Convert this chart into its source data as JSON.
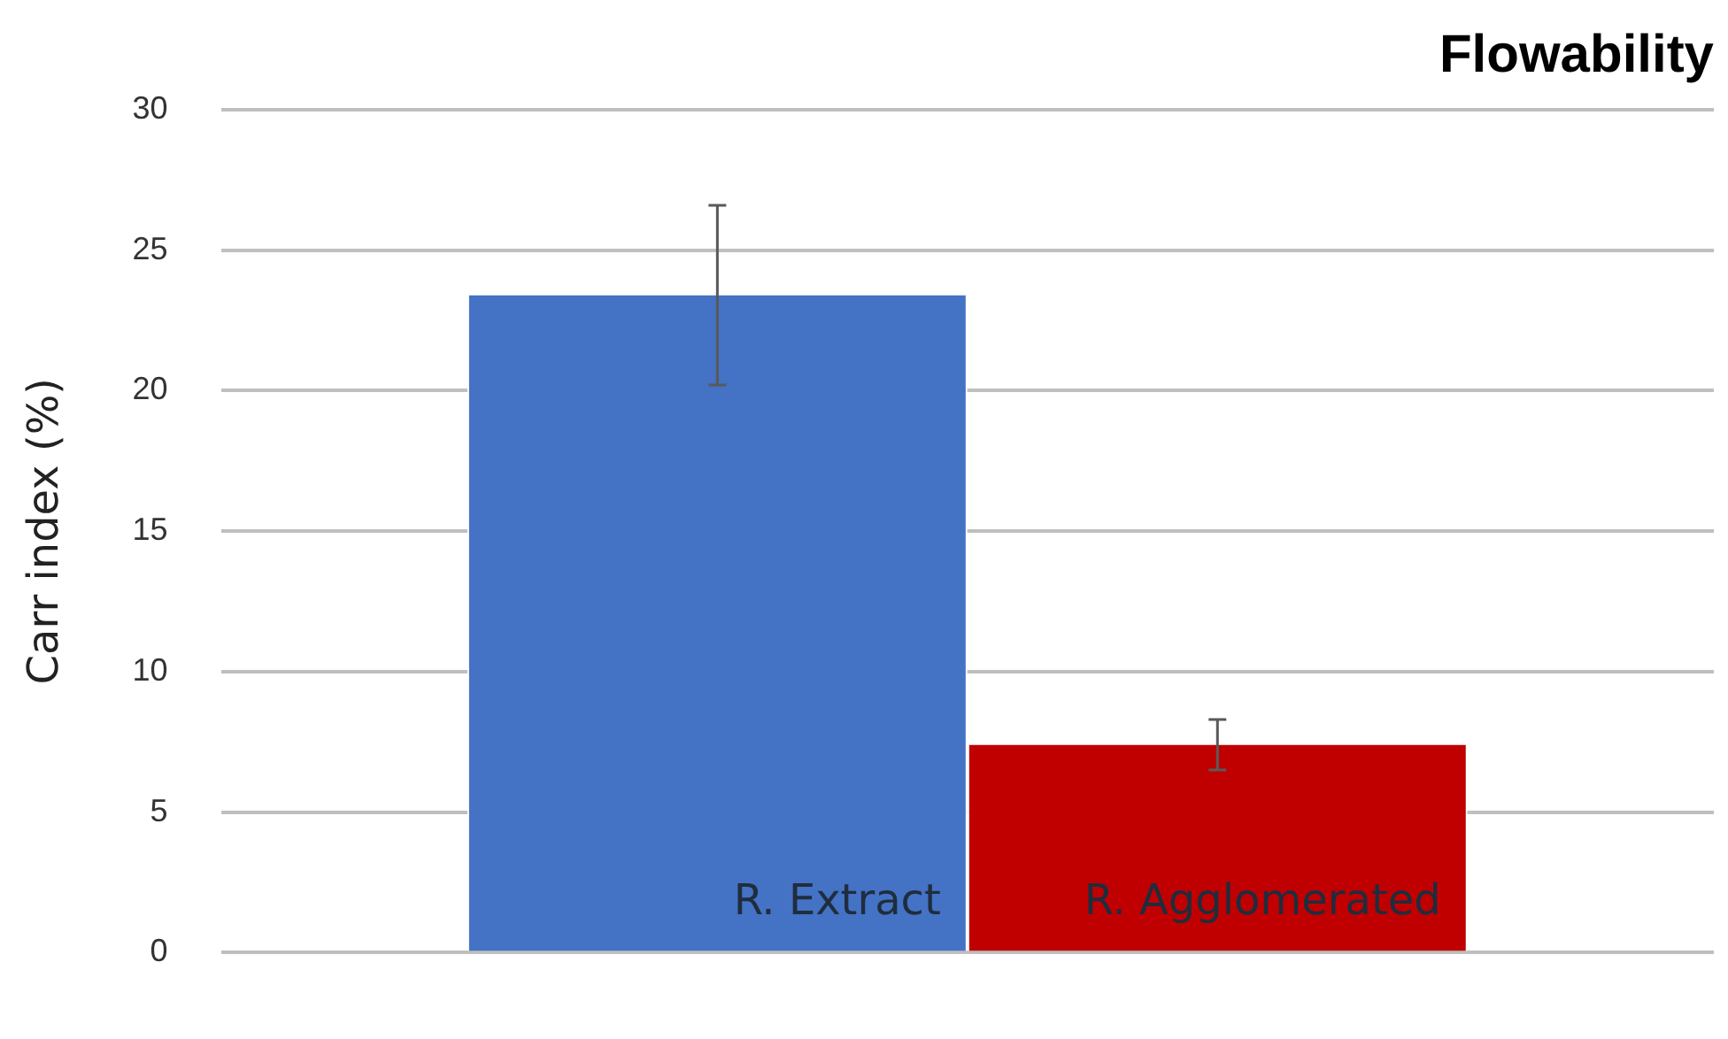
{
  "chart_data": {
    "type": "bar",
    "title": "Flowability",
    "ylabel": "Carr index (%)",
    "categories": [
      null
    ],
    "series": [
      {
        "name": "R. Extract",
        "color": "#4472c4",
        "values": [
          23.4
        ],
        "errors": [
          3.2
        ]
      },
      {
        "name": "R. Agglomerated",
        "color": "#c00000",
        "values": [
          7.4
        ],
        "errors": [
          0.9
        ]
      }
    ],
    "ylim": [
      0,
      30
    ],
    "yticks": [
      0,
      5,
      10,
      15,
      20,
      25,
      30
    ],
    "grid": "y",
    "legend": false,
    "tick_labels": "y"
  }
}
